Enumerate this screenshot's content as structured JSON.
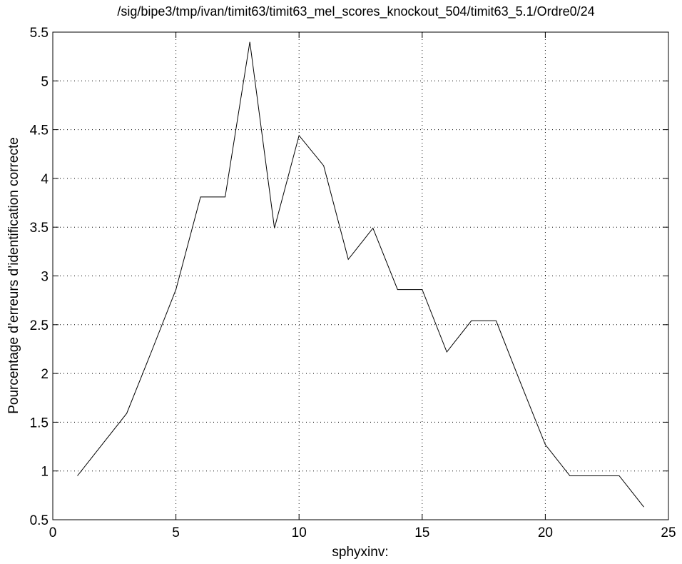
{
  "chart_data": {
    "type": "line",
    "title": "/sig/bipe3/tmp/ivan/timit63/timit63_mel_scores_knockout_504/timit63_5.1/Ordre0/24",
    "xlabel": "sphyxinv:",
    "ylabel": "Pourcentage d’erreurs d’identification correcte",
    "xlim": [
      0,
      25
    ],
    "ylim": [
      0.5,
      5.5
    ],
    "xticks": [
      0,
      5,
      10,
      15,
      20,
      25
    ],
    "yticks": [
      0.5,
      1,
      1.5,
      2,
      2.5,
      3,
      3.5,
      4,
      4.5,
      5,
      5.5
    ],
    "grid": true,
    "line_color": "#000000",
    "x": [
      1,
      2,
      3,
      4,
      5,
      6,
      7,
      8,
      9,
      10,
      11,
      12,
      13,
      14,
      15,
      16,
      17,
      18,
      19,
      20,
      21,
      22,
      23,
      24
    ],
    "y": [
      0.95,
      1.27,
      1.59,
      2.22,
      2.86,
      3.81,
      3.81,
      5.4,
      3.49,
      4.44,
      4.13,
      3.17,
      3.49,
      2.86,
      2.86,
      2.22,
      2.54,
      2.54,
      1.9,
      1.27,
      0.95,
      0.95,
      0.95,
      0.63
    ]
  }
}
